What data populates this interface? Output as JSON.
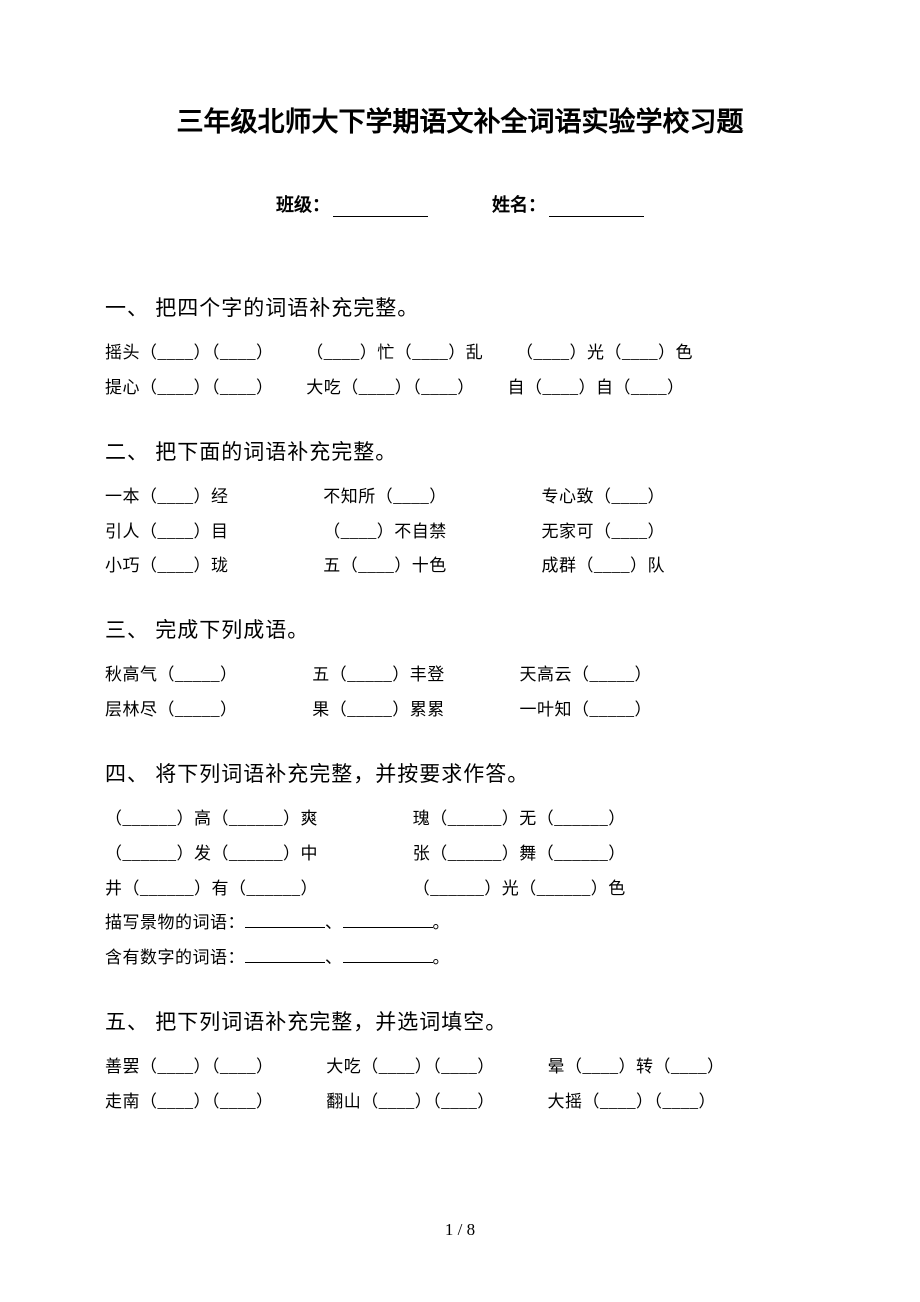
{
  "title": "三年级北师大下学期语文补全词语实验学校习题",
  "class_label": "班级：",
  "name_label": "姓名：",
  "page_number": "1 / 8",
  "sections": {
    "s1": {
      "heading": "一、 把四个字的词语补充完整。",
      "r1a": "摇头（____）（____）",
      "r1b": "（____）忙（____）乱",
      "r1c": "（____）光（____）色",
      "r2a": "提心（____）（____）",
      "r2b": "大吃（____）（____）",
      "r2c": "自（____）自（____）"
    },
    "s2": {
      "heading": "二、 把下面的词语补充完整。",
      "r1a": "一本（____）经",
      "r1b": "不知所（____）",
      "r1c": "专心致（____）",
      "r2a": "引人（____）目",
      "r2b": "（____）不自禁",
      "r2c": "无家可（____）",
      "r3a": "小巧（____）珑",
      "r3b": "五（____）十色",
      "r3c": "成群（____）队"
    },
    "s3": {
      "heading": "三、 完成下列成语。",
      "r1a": "秋高气（_____）",
      "r1b": "五（_____）丰登",
      "r1c": "天高云（_____）",
      "r2a": "层林尽（_____）",
      "r2b": "果（_____）累累",
      "r2c": "一叶知（_____）"
    },
    "s4": {
      "heading": "四、 将下列词语补充完整，并按要求作答。",
      "r1a": "（______）高（______）爽",
      "r1b": "瑰（______）无（______）",
      "r2a": "（______）发（______）中",
      "r2b": "张（______）舞（______）",
      "r3a": "井（______）有（______）",
      "r3b": "（______）光（______）色",
      "r4pre": "描写景物的词语：",
      "r5pre": "含有数字的词语：",
      "sep": "、",
      "period": "。"
    },
    "s5": {
      "heading": "五、 把下列词语补充完整，并选词填空。",
      "r1a": "善罢（____）（____）",
      "r1b": "大吃（____）（____）",
      "r1c": "晕（____）转（____）",
      "r2a": "走南（____）（____）",
      "r2b": "翻山（____）（____）",
      "r2c": "大摇（____）（____）"
    }
  }
}
